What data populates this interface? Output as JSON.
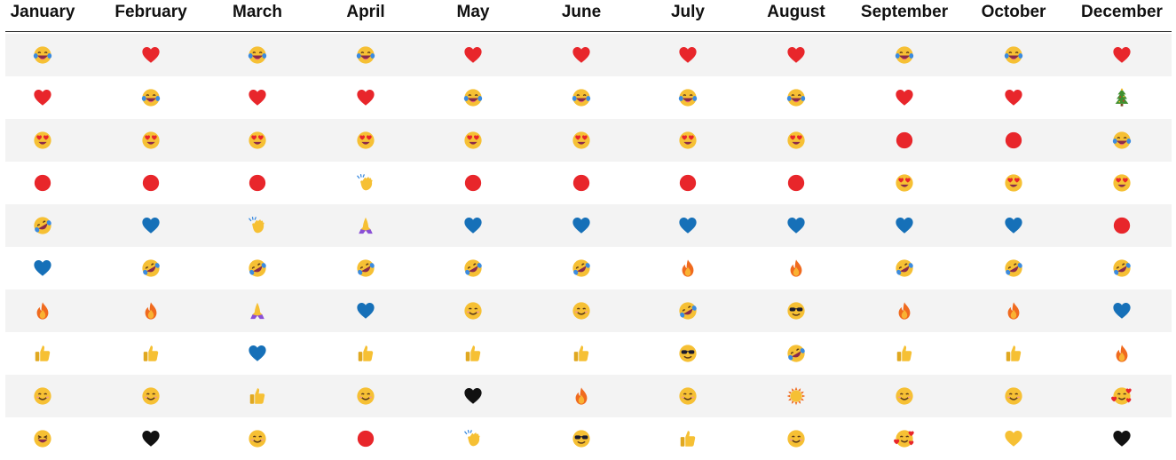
{
  "chart_data": {
    "type": "table",
    "columns": [
      "January",
      "February",
      "March",
      "April",
      "May",
      "June",
      "July",
      "August",
      "September",
      "October",
      "December"
    ],
    "rows": [
      [
        "laughing-tears",
        "red-heart",
        "laughing-tears",
        "laughing-tears",
        "red-heart",
        "red-heart",
        "red-heart",
        "red-heart",
        "laughing-tears",
        "laughing-tears",
        "red-heart"
      ],
      [
        "red-heart",
        "laughing-tears",
        "red-heart",
        "red-heart",
        "laughing-tears",
        "laughing-tears",
        "laughing-tears",
        "laughing-tears",
        "red-heart",
        "red-heart",
        "christmas-tree"
      ],
      [
        "heart-eyes",
        "heart-eyes",
        "heart-eyes",
        "heart-eyes",
        "heart-eyes",
        "heart-eyes",
        "heart-eyes",
        "heart-eyes",
        "red-circle",
        "red-circle",
        "laughing-tears"
      ],
      [
        "red-circle",
        "red-circle",
        "red-circle",
        "clapping-hands",
        "red-circle",
        "red-circle",
        "red-circle",
        "red-circle",
        "heart-eyes",
        "heart-eyes",
        "heart-eyes"
      ],
      [
        "rofl",
        "blue-heart",
        "clapping-hands",
        "folded-hands",
        "blue-heart",
        "blue-heart",
        "blue-heart",
        "blue-heart",
        "blue-heart",
        "blue-heart",
        "red-circle"
      ],
      [
        "blue-heart",
        "rofl",
        "rofl",
        "rofl",
        "rofl",
        "rofl",
        "fire",
        "fire",
        "rofl",
        "rofl",
        "rofl"
      ],
      [
        "fire",
        "fire",
        "folded-hands",
        "blue-heart",
        "smiling-face",
        "smiling-face",
        "rofl",
        "sunglasses-face",
        "fire",
        "fire",
        "blue-heart"
      ],
      [
        "thumbs-up",
        "thumbs-up",
        "blue-heart",
        "thumbs-up",
        "thumbs-up",
        "thumbs-up",
        "sunglasses-face",
        "rofl",
        "thumbs-up",
        "thumbs-up",
        "fire"
      ],
      [
        "smiling-face",
        "smiling-face",
        "thumbs-up",
        "smiling-face",
        "black-heart",
        "fire",
        "smiling-face",
        "sun",
        "smiling-face",
        "smiling-face",
        "smiling-hearts"
      ],
      [
        "grinning-squint",
        "black-heart",
        "smiling-face",
        "red-circle",
        "clapping-hands",
        "sunglasses-face",
        "thumbs-up",
        "smiling-face",
        "smiling-hearts",
        "yellow-heart",
        "black-heart"
      ]
    ]
  },
  "colors": {
    "header_text": "#111111",
    "rule": "#333333",
    "stripe": "#f3f3f3",
    "red": "#e8262b",
    "blue": "#1670b8",
    "yellow_face": "#f6c034",
    "mouth": "#8a2b4a",
    "tongue": "#ef5f7a",
    "tear": "#3b8be0",
    "purple": "#8a4fd6",
    "fire_outer": "#f06a1e",
    "fire_inner": "#f9b233",
    "tree_green": "#3f8f2f",
    "black": "#111111"
  }
}
